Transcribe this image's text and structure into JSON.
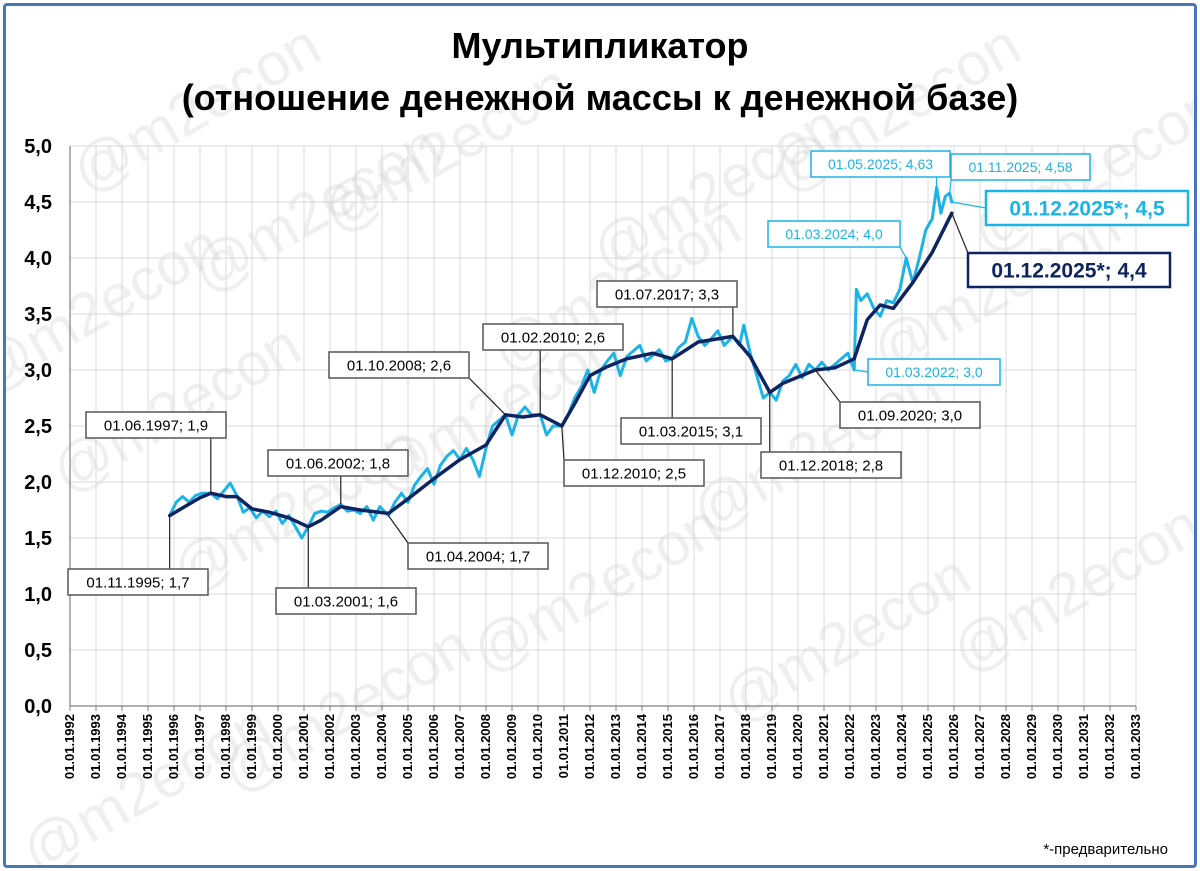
{
  "chart_data": {
    "type": "line",
    "title_line1": "Мультипликатор",
    "title_line2": "(отношение денежной массы к денежной базе)",
    "watermark": "@m2econ",
    "footnote": "*-предварительно",
    "ylim": [
      0,
      5
    ],
    "y_ticks": [
      "0,0",
      "0,5",
      "1,0",
      "1,5",
      "2,0",
      "2,5",
      "3,0",
      "3,5",
      "4,0",
      "4,5",
      "5,0"
    ],
    "x_ticks": [
      "01.01.1992",
      "01.01.1993",
      "01.01.1994",
      "01.01.1995",
      "01.01.1996",
      "01.01.1997",
      "01.01.1998",
      "01.01.1999",
      "01.01.2000",
      "01.01.2001",
      "01.01.2002",
      "01.01.2003",
      "01.01.2004",
      "01.01.2005",
      "01.01.2006",
      "01.01.2007",
      "01.01.2008",
      "01.01.2009",
      "01.01.2010",
      "01.01.2011",
      "01.01.2012",
      "01.01.2013",
      "01.01.2014",
      "01.01.2015",
      "01.01.2016",
      "01.01.2017",
      "01.01.2018",
      "01.01.2019",
      "01.01.2020",
      "01.01.2021",
      "01.01.2022",
      "01.01.2023",
      "01.01.2024",
      "01.01.2025",
      "01.01.2026",
      "01.01.2027",
      "01.01.2028",
      "01.01.2029",
      "01.01.2030",
      "01.01.2031",
      "01.01.2032",
      "01.01.2033"
    ],
    "grid": true,
    "series": [
      {
        "color": "#1cb3e8",
        "points": [
          [
            "1995-11-01",
            1.7
          ],
          [
            "1996-02-01",
            1.82
          ],
          [
            "1996-05-01",
            1.87
          ],
          [
            "1996-08-01",
            1.82
          ],
          [
            "1996-11-01",
            1.88
          ],
          [
            "1997-02-01",
            1.9
          ],
          [
            "1997-06-01",
            1.9
          ],
          [
            "1997-09-01",
            1.85
          ],
          [
            "1997-12-01",
            1.92
          ],
          [
            "1998-03-01",
            1.99
          ],
          [
            "1998-06-01",
            1.88
          ],
          [
            "1998-09-01",
            1.73
          ],
          [
            "1998-12-01",
            1.77
          ],
          [
            "1999-03-01",
            1.68
          ],
          [
            "1999-06-01",
            1.74
          ],
          [
            "1999-09-01",
            1.69
          ],
          [
            "1999-12-01",
            1.74
          ],
          [
            "2000-03-01",
            1.63
          ],
          [
            "2000-06-01",
            1.7
          ],
          [
            "2000-09-01",
            1.6
          ],
          [
            "2000-12-01",
            1.5
          ],
          [
            "2001-03-01",
            1.6
          ],
          [
            "2001-06-01",
            1.72
          ],
          [
            "2001-09-01",
            1.74
          ],
          [
            "2001-12-01",
            1.73
          ],
          [
            "2002-03-01",
            1.77
          ],
          [
            "2002-06-01",
            1.8
          ],
          [
            "2002-09-01",
            1.74
          ],
          [
            "2002-12-01",
            1.75
          ],
          [
            "2003-03-01",
            1.72
          ],
          [
            "2003-06-01",
            1.78
          ],
          [
            "2003-09-01",
            1.66
          ],
          [
            "2003-12-01",
            1.78
          ],
          [
            "2004-04-01",
            1.7
          ],
          [
            "2004-07-01",
            1.82
          ],
          [
            "2004-10-01",
            1.9
          ],
          [
            "2005-01-01",
            1.82
          ],
          [
            "2005-04-01",
            1.97
          ],
          [
            "2005-07-01",
            2.05
          ],
          [
            "2005-10-01",
            2.12
          ],
          [
            "2006-01-01",
            1.98
          ],
          [
            "2006-04-01",
            2.15
          ],
          [
            "2006-07-01",
            2.23
          ],
          [
            "2006-10-01",
            2.28
          ],
          [
            "2007-01-01",
            2.2
          ],
          [
            "2007-04-01",
            2.3
          ],
          [
            "2007-07-01",
            2.2
          ],
          [
            "2007-10-01",
            2.05
          ],
          [
            "2008-01-01",
            2.3
          ],
          [
            "2008-04-01",
            2.5
          ],
          [
            "2008-07-01",
            2.55
          ],
          [
            "2008-10-01",
            2.6
          ],
          [
            "2009-01-01",
            2.42
          ],
          [
            "2009-04-01",
            2.6
          ],
          [
            "2009-07-01",
            2.67
          ],
          [
            "2009-10-01",
            2.6
          ],
          [
            "2010-02-01",
            2.6
          ],
          [
            "2010-05-01",
            2.42
          ],
          [
            "2010-08-01",
            2.5
          ],
          [
            "2010-12-01",
            2.5
          ],
          [
            "2011-03-01",
            2.6
          ],
          [
            "2011-06-01",
            2.75
          ],
          [
            "2011-09-01",
            2.85
          ],
          [
            "2011-12-01",
            3.0
          ],
          [
            "2012-03-01",
            2.8
          ],
          [
            "2012-06-01",
            3.0
          ],
          [
            "2012-09-01",
            3.08
          ],
          [
            "2012-12-01",
            3.15
          ],
          [
            "2013-03-01",
            2.95
          ],
          [
            "2013-06-01",
            3.12
          ],
          [
            "2013-09-01",
            3.17
          ],
          [
            "2013-12-01",
            3.22
          ],
          [
            "2014-03-01",
            3.08
          ],
          [
            "2014-06-01",
            3.13
          ],
          [
            "2014-09-01",
            3.18
          ],
          [
            "2014-12-01",
            3.08
          ],
          [
            "2015-03-01",
            3.1
          ],
          [
            "2015-06-01",
            3.2
          ],
          [
            "2015-09-01",
            3.25
          ],
          [
            "2015-12-01",
            3.46
          ],
          [
            "2016-03-01",
            3.3
          ],
          [
            "2016-06-01",
            3.22
          ],
          [
            "2016-09-01",
            3.28
          ],
          [
            "2016-12-01",
            3.35
          ],
          [
            "2017-03-01",
            3.22
          ],
          [
            "2017-07-01",
            3.3
          ],
          [
            "2017-10-01",
            3.22
          ],
          [
            "2017-12-01",
            3.4
          ],
          [
            "2018-03-01",
            3.15
          ],
          [
            "2018-06-01",
            2.95
          ],
          [
            "2018-09-01",
            2.75
          ],
          [
            "2018-12-01",
            2.8
          ],
          [
            "2019-03-01",
            2.73
          ],
          [
            "2019-06-01",
            2.9
          ],
          [
            "2019-09-01",
            2.95
          ],
          [
            "2019-12-01",
            3.05
          ],
          [
            "2020-03-01",
            2.93
          ],
          [
            "2020-06-01",
            3.05
          ],
          [
            "2020-09-01",
            3.0
          ],
          [
            "2020-12-01",
            3.07
          ],
          [
            "2021-03-01",
            3.0
          ],
          [
            "2021-06-01",
            3.05
          ],
          [
            "2021-09-01",
            3.1
          ],
          [
            "2021-12-01",
            3.15
          ],
          [
            "2022-03-01",
            3.0
          ],
          [
            "2022-04-01",
            3.72
          ],
          [
            "2022-06-01",
            3.62
          ],
          [
            "2022-09-01",
            3.68
          ],
          [
            "2022-12-01",
            3.55
          ],
          [
            "2023-03-01",
            3.48
          ],
          [
            "2023-06-01",
            3.62
          ],
          [
            "2023-09-01",
            3.6
          ],
          [
            "2023-12-01",
            3.72
          ],
          [
            "2024-03-01",
            4.0
          ],
          [
            "2024-06-01",
            3.78
          ],
          [
            "2024-09-01",
            4.0
          ],
          [
            "2024-12-01",
            4.25
          ],
          [
            "2025-03-01",
            4.35
          ],
          [
            "2025-05-01",
            4.63
          ],
          [
            "2025-07-01",
            4.4
          ],
          [
            "2025-09-01",
            4.55
          ],
          [
            "2025-11-01",
            4.58
          ],
          [
            "2025-12-01",
            4.5
          ]
        ]
      },
      {
        "color": "#0d2461",
        "points": [
          [
            "1995-11-01",
            1.7
          ],
          [
            "1996-06-01",
            1.78
          ],
          [
            "1997-01-01",
            1.86
          ],
          [
            "1997-06-01",
            1.9
          ],
          [
            "1998-01-01",
            1.87
          ],
          [
            "1998-06-01",
            1.87
          ],
          [
            "1999-01-01",
            1.76
          ],
          [
            "1999-09-01",
            1.73
          ],
          [
            "2000-06-01",
            1.68
          ],
          [
            "2001-03-01",
            1.6
          ],
          [
            "2001-09-01",
            1.66
          ],
          [
            "2002-06-01",
            1.78
          ],
          [
            "2003-03-01",
            1.75
          ],
          [
            "2004-04-01",
            1.72
          ],
          [
            "2005-01-01",
            1.85
          ],
          [
            "2006-01-01",
            2.03
          ],
          [
            "2007-01-01",
            2.2
          ],
          [
            "2008-01-01",
            2.33
          ],
          [
            "2008-10-01",
            2.6
          ],
          [
            "2009-06-01",
            2.58
          ],
          [
            "2010-02-01",
            2.6
          ],
          [
            "2010-12-01",
            2.5
          ],
          [
            "2011-06-01",
            2.7
          ],
          [
            "2012-01-01",
            2.95
          ],
          [
            "2012-09-01",
            3.03
          ],
          [
            "2013-06-01",
            3.1
          ],
          [
            "2014-06-01",
            3.15
          ],
          [
            "2015-03-01",
            3.1
          ],
          [
            "2016-03-01",
            3.25
          ],
          [
            "2017-07-01",
            3.3
          ],
          [
            "2018-03-01",
            3.12
          ],
          [
            "2018-12-01",
            2.8
          ],
          [
            "2019-06-01",
            2.88
          ],
          [
            "2020-09-01",
            3.0
          ],
          [
            "2021-06-01",
            3.02
          ],
          [
            "2022-03-01",
            3.1
          ],
          [
            "2022-09-01",
            3.45
          ],
          [
            "2023-03-01",
            3.58
          ],
          [
            "2023-09-01",
            3.55
          ],
          [
            "2024-06-01",
            3.78
          ],
          [
            "2025-03-01",
            4.05
          ],
          [
            "2025-12-01",
            4.4
          ]
        ]
      }
    ],
    "annotations": [
      {
        "text": "01.11.1995; 1,7",
        "style": "dark",
        "date": "1995-11-01",
        "value": 1.7
      },
      {
        "text": "01.06.1997; 1,9",
        "style": "dark",
        "date": "1997-06-01",
        "value": 1.9
      },
      {
        "text": "01.03.2001; 1,6",
        "style": "dark",
        "date": "2001-03-01",
        "value": 1.6
      },
      {
        "text": "01.06.2002; 1,8",
        "style": "dark",
        "date": "2002-06-01",
        "value": 1.8
      },
      {
        "text": "01.04.2004; 1,7",
        "style": "dark",
        "date": "2004-04-01",
        "value": 1.7
      },
      {
        "text": "01.10.2008; 2,6",
        "style": "dark",
        "date": "2008-10-01",
        "value": 2.6
      },
      {
        "text": "01.02.2010; 2,6",
        "style": "dark",
        "date": "2010-02-01",
        "value": 2.6
      },
      {
        "text": "01.12.2010; 2,5",
        "style": "dark",
        "date": "2010-12-01",
        "value": 2.5
      },
      {
        "text": "01.03.2015; 3,1",
        "style": "dark",
        "date": "2015-03-01",
        "value": 3.1
      },
      {
        "text": "01.07.2017; 3,3",
        "style": "dark",
        "date": "2017-07-01",
        "value": 3.3
      },
      {
        "text": "01.12.2018; 2,8",
        "style": "dark",
        "date": "2018-12-01",
        "value": 2.8
      },
      {
        "text": "01.09.2020; 3,0",
        "style": "dark",
        "date": "2020-09-01",
        "value": 3.0
      },
      {
        "text": "01.03.2022; 3,0",
        "style": "cyan",
        "date": "2022-03-01",
        "value": 3.0
      },
      {
        "text": "01.03.2024; 4,0",
        "style": "cyan",
        "date": "2024-03-01",
        "value": 4.0
      },
      {
        "text": "01.05.2025; 4,63",
        "style": "cyan",
        "date": "2025-05-01",
        "value": 4.63
      },
      {
        "text": "01.11.2025; 4,58",
        "style": "cyan",
        "date": "2025-11-01",
        "value": 4.58
      },
      {
        "text": "01.12.2025*; 4,5",
        "style": "cyan-big",
        "date": "2025-12-01",
        "value": 4.5
      },
      {
        "text": "01.12.2025*; 4,4",
        "style": "dark-big",
        "date": "2025-12-01",
        "value": 4.4
      }
    ]
  }
}
